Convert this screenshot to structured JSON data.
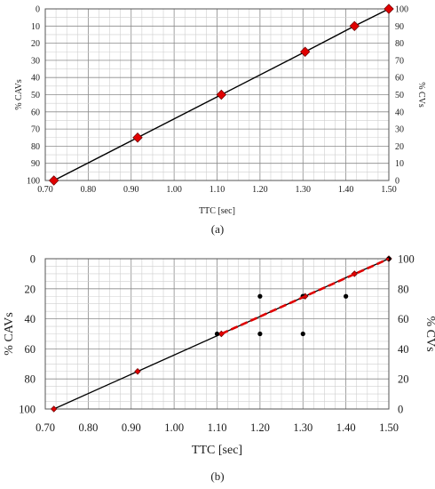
{
  "chart_data": [
    {
      "type": "line",
      "caption": "(a)",
      "xlabel": "TTC [sec]",
      "ylabel_left": "% CAVs",
      "ylabel_right": "% CVs",
      "xlim": [
        0.7,
        1.5
      ],
      "x_ticks": [
        "0.70",
        "0.80",
        "0.90",
        "1.00",
        "1.10",
        "1.20",
        "1.30",
        "1.40",
        "1.50"
      ],
      "ylim_left": [
        0,
        100
      ],
      "ylim_right": [
        0,
        100
      ],
      "y_ticks_left": [
        "0",
        "10",
        "20",
        "30",
        "40",
        "50",
        "60",
        "70",
        "80",
        "90",
        "100"
      ],
      "y_ticks_right": [
        "100",
        "90",
        "80",
        "70",
        "60",
        "50",
        "40",
        "30",
        "20",
        "10",
        "0"
      ],
      "left_axis_inverted": true,
      "grid": true,
      "series": [
        {
          "marker": "diamond",
          "color": "#e00000",
          "line_color": "#000000",
          "x": [
            0.72,
            0.915,
            1.11,
            1.305,
            1.42,
            1.5
          ],
          "cav_percent": [
            100,
            75,
            50,
            25,
            10,
            0
          ]
        }
      ]
    },
    {
      "type": "scatter",
      "caption": "(b)",
      "xlabel": "TTC [sec]",
      "ylabel_left": "% CAVs",
      "ylabel_right": "% CVs",
      "xlim": [
        0.7,
        1.5
      ],
      "x_ticks": [
        "0.70",
        "0.80",
        "0.90",
        "1.00",
        "1.10",
        "1.20",
        "1.30",
        "1.40",
        "1.50"
      ],
      "ylim_left": [
        0,
        100
      ],
      "ylim_right": [
        0,
        100
      ],
      "y_ticks_left": [
        "0",
        "20",
        "40",
        "60",
        "80",
        "100"
      ],
      "y_ticks_right": [
        "100",
        "80",
        "60",
        "40",
        "20",
        "0"
      ],
      "left_axis_inverted": true,
      "grid": true,
      "series": [
        {
          "marker": "diamond",
          "color": "#e00000",
          "line_color": "#000000",
          "x": [
            0.72,
            0.915,
            1.11,
            1.305,
            1.42,
            1.5
          ],
          "cav_percent": [
            100,
            75,
            50,
            25,
            10,
            0
          ]
        },
        {
          "marker": "dot",
          "color": "#000000",
          "x": [
            1.1,
            1.2,
            1.2,
            1.3,
            1.3,
            1.3,
            1.4,
            1.5
          ],
          "cav_percent": [
            50,
            25,
            50,
            25,
            50,
            25,
            25,
            0
          ]
        },
        {
          "marker": "none",
          "style": "dashed-trend",
          "color": "#e00000",
          "x": [
            1.11,
            1.5
          ],
          "cav_percent": [
            50,
            0
          ]
        }
      ]
    }
  ]
}
